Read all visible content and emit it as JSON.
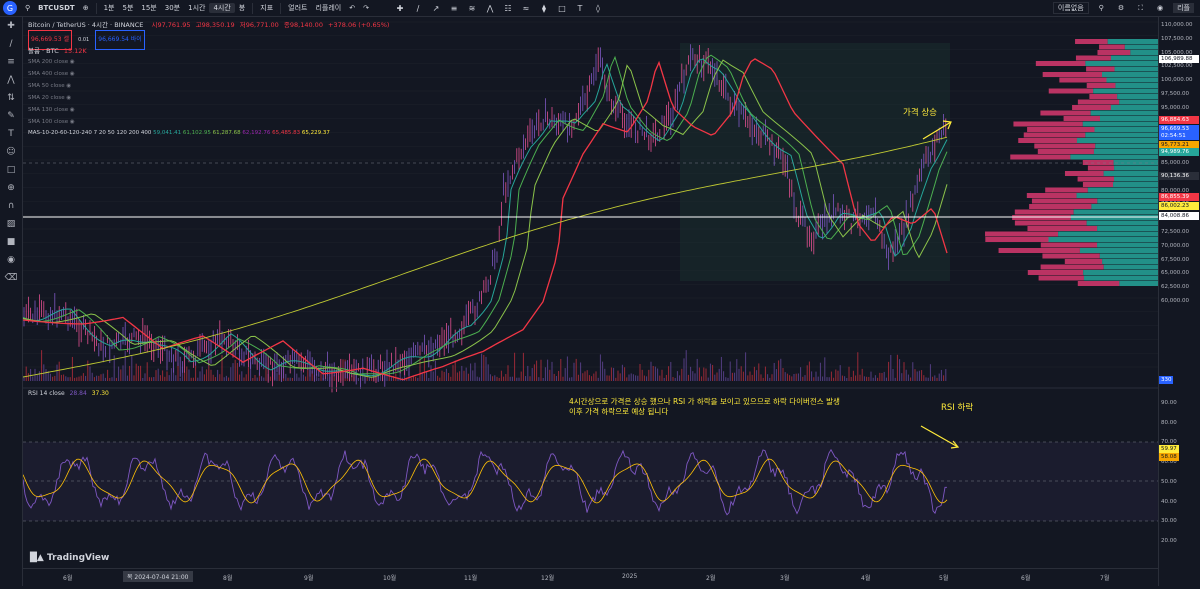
{
  "topbar": {
    "symbol": "BTCUSDT",
    "intervals": [
      "1분",
      "5분",
      "15분",
      "30분",
      "1시간",
      "4시간"
    ],
    "active_interval": "4시간",
    "chart_type": "봉",
    "indicators_label": "지표",
    "alert_label": "얼러트",
    "replay_label": "리플레이",
    "layout_label": "이름없음",
    "account_label": "리플"
  },
  "legend": {
    "title": "Bitcoin / TetherUS · 4시간 · BINANCE",
    "ohlc": {
      "o": "시97,761.95",
      "h": "고98,350.19",
      "l": "저96,771.00",
      "c": "종98,140.00",
      "chg": "+378.06 (+0.65%)"
    },
    "sell_price": "96,669.53",
    "sell_label": "셀",
    "spread": "0.01",
    "buy_price": "96,669.54",
    "buy_label": "바이",
    "volume_label": "볼륨 · BTC",
    "volume_value": "15.12K",
    "sma_items": [
      "SMA 200 close",
      "SMA 400 close",
      "SMA 50 close",
      "SMA 20 close",
      "SMA 130 close",
      "SMA 100 close"
    ],
    "mas_label": "MAS-10-20-60-120-240 7 20 50 120 200 400",
    "mas_values": [
      "59,041.41",
      "61,102.95",
      "61,287.68",
      "62,192.76",
      "65,485.83",
      "65,229.37"
    ]
  },
  "rsi": {
    "label": "RSI 14 close",
    "v1": "28.84",
    "v2": "37.30"
  },
  "annotations": {
    "price_up": "가격 상승",
    "rsi_down": "RSI 하락",
    "note_line1": "4시간상으로 가격은 상승 했으나 RSI 가 하락을 보이고 있으므로 하락 다이버전스 발생",
    "note_line2": "이후 가격 하락으로 예상 됩니다"
  },
  "price_axis": {
    "labels": [
      "110,000.00",
      "107,500.00",
      "105,000.00",
      "102,500.00",
      "100,000.00",
      "97,500.00",
      "95,000.00",
      "92,500.00",
      "90,000.00",
      "87,500.00",
      "85,000.00",
      "82,500.00",
      "80,000.00",
      "77,500.00",
      "75,000.00",
      "72,500.00",
      "70,000.00",
      "67,500.00",
      "65,000.00",
      "62,500.00",
      "60,000.00"
    ],
    "badges": [
      {
        "text": "106,989.88",
        "color": "#ffffff",
        "fg": "#131722"
      },
      {
        "text": "96,884.63",
        "color": "#f23645",
        "fg": "#ffffff"
      },
      {
        "text": "96,669.53",
        "color": "#2962ff",
        "fg": "#ffffff"
      },
      {
        "text": "02:54:51",
        "color": "#2962ff",
        "fg": "#ffffff"
      },
      {
        "text": "95,773.21",
        "color": "#f7a600",
        "fg": "#131722"
      },
      {
        "text": "94,989.76",
        "color": "#26a69a",
        "fg": "#ffffff"
      },
      {
        "text": "90,136.36",
        "color": "#2a2e39",
        "fg": "#ffffff"
      },
      {
        "text": "86,855.39",
        "color": "#f23645",
        "fg": "#ffffff"
      },
      {
        "text": "86,002.23",
        "color": "#ffeb3b",
        "fg": "#131722"
      },
      {
        "text": "84,008.86",
        "color": "#ffffff",
        "fg": "#131722"
      }
    ],
    "volume_badge": "330",
    "rsi_labels": [
      "90.00",
      "80.00",
      "70.00",
      "60.00",
      "50.00",
      "40.00",
      "30.00",
      "20.00"
    ],
    "rsi_badges": [
      {
        "text": "59.97",
        "color": "#ffeb3b"
      },
      {
        "text": "58.08",
        "color": "#f7a600"
      }
    ]
  },
  "time_axis": {
    "labels": [
      "6월",
      "8월",
      "9월",
      "10월",
      "11월",
      "12월",
      "2025",
      "2월",
      "3월",
      "4월",
      "5월",
      "6월",
      "7월"
    ],
    "crosshair": "목 2024-07-04  21:00"
  },
  "brand": "TradingView"
}
